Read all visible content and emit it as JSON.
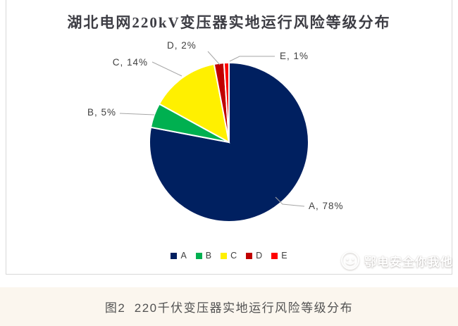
{
  "figure": {
    "title": "湖北电网220kV变压器实地运行风险等级分布",
    "caption": "图2  220千伏变压器实地运行风险等级分布",
    "watermark": "鄂电安全你我他"
  },
  "chart_data": {
    "type": "pie",
    "title": "湖北电网220kV变压器实地运行风险等级分布",
    "categories": [
      "A",
      "B",
      "C",
      "D",
      "E"
    ],
    "values": [
      78,
      5,
      14,
      2,
      1
    ],
    "unit": "%",
    "slice_labels": [
      "A, 78%",
      "B, 5%",
      "C, 14%",
      "D, 2%",
      "E, 1%"
    ],
    "colors": [
      "#002060",
      "#00B050",
      "#FFF000",
      "#C00000",
      "#FF0000"
    ],
    "start_angle_deg": 0,
    "direction": "clockwise",
    "legend_position": "bottom",
    "leader_line_color": "#a6a6a6",
    "slice_separator_color": "#ffffff"
  }
}
